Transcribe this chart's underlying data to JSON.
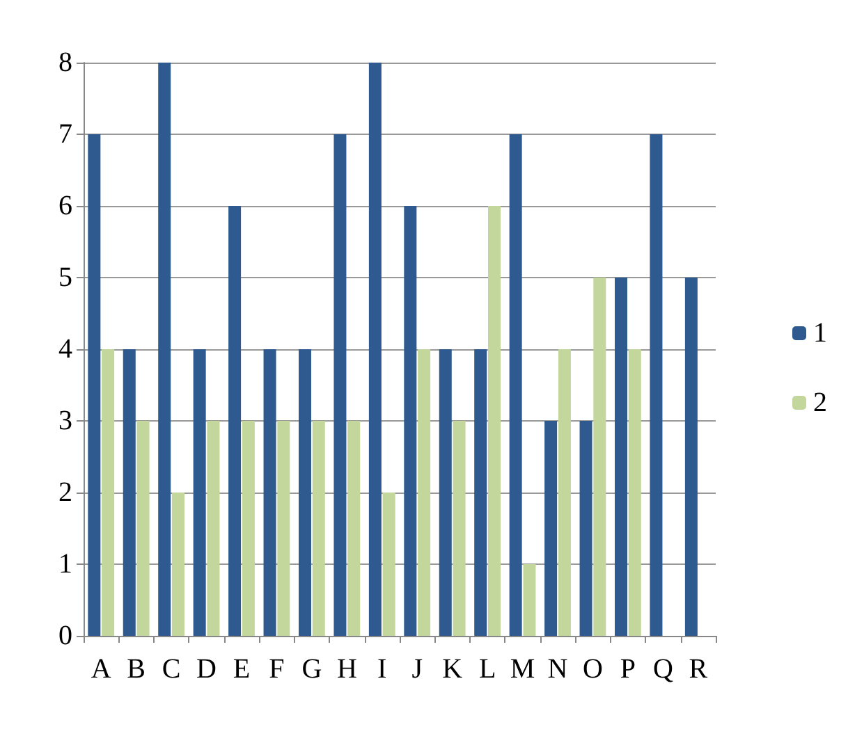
{
  "chart_data": {
    "type": "bar",
    "categories": [
      "A",
      "B",
      "C",
      "D",
      "E",
      "F",
      "G",
      "H",
      "I",
      "J",
      "K",
      "L",
      "M",
      "N",
      "O",
      "P",
      "Q",
      "R"
    ],
    "series": [
      {
        "name": "1",
        "color": "#2e5a8f",
        "values": [
          7,
          4,
          8,
          4,
          6,
          4,
          4,
          7,
          8,
          6,
          4,
          4,
          7,
          3,
          3,
          5,
          7,
          5
        ]
      },
      {
        "name": "2",
        "color": "#c3d69b",
        "values": [
          4,
          3,
          2,
          3,
          3,
          3,
          3,
          3,
          2,
          4,
          3,
          6,
          1,
          4,
          5,
          4,
          0,
          0
        ]
      }
    ],
    "ylim": [
      0,
      8
    ],
    "yticks": [
      0,
      1,
      2,
      3,
      4,
      5,
      6,
      7,
      8
    ],
    "grid": "y",
    "legend": "right"
  }
}
